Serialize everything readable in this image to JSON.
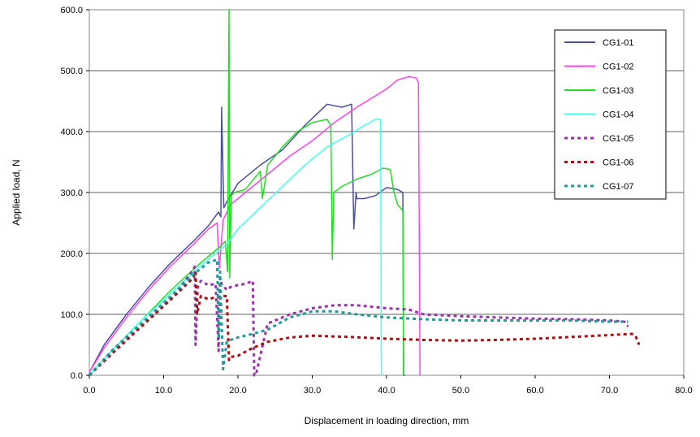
{
  "chart_data": {
    "type": "line",
    "xlabel": "Displacement in loading direction, mm",
    "ylabel": "Applied load, N",
    "xlim": [
      0,
      80
    ],
    "ylim": [
      0,
      600
    ],
    "x_ticks": [
      "0.0",
      "10.0",
      "20.0",
      "30.0",
      "40.0",
      "50.0",
      "60.0",
      "70.0",
      "80.0"
    ],
    "y_ticks": [
      "0.0",
      "100.0",
      "200.0",
      "300.0",
      "400.0",
      "500.0",
      "600.0"
    ],
    "grid": "horizontal",
    "legend_position": "top-right",
    "series": [
      {
        "name": "CG1-01",
        "color": "#4a4f9e",
        "style": "solid",
        "x": [
          0,
          2,
          5,
          8,
          11,
          14,
          16,
          17.4,
          17.7,
          17.8,
          18.1,
          18.5,
          20,
          23,
          26,
          29,
          32,
          34,
          35.3,
          35.6,
          35.9,
          36,
          37,
          38.5,
          40,
          41.5,
          42.2,
          42.3,
          42.5
        ],
        "y": [
          5,
          50,
          100,
          145,
          185,
          220,
          245,
          268,
          260,
          440,
          275,
          285,
          315,
          345,
          370,
          410,
          445,
          440,
          445,
          240,
          300,
          290,
          290,
          295,
          308,
          305,
          300,
          0,
          0
        ]
      },
      {
        "name": "CG1-02",
        "color": "#ff44ee",
        "style": "solid",
        "x": [
          0,
          2,
          5,
          8,
          11,
          14,
          16,
          17.2,
          17.5,
          18,
          19,
          21,
          24,
          27,
          30,
          33,
          36,
          38,
          40,
          41.5,
          43,
          44,
          44.3,
          44.5,
          44.6
        ],
        "y": [
          5,
          45,
          95,
          140,
          180,
          215,
          240,
          250,
          175,
          255,
          280,
          300,
          330,
          360,
          385,
          415,
          440,
          455,
          470,
          485,
          490,
          488,
          480,
          0,
          0
        ]
      },
      {
        "name": "CG1-03",
        "color": "#22dd22",
        "style": "solid",
        "x": [
          0,
          3,
          7,
          11,
          15,
          17.5,
          18.3,
          18.6,
          18.8,
          18.9,
          19.1,
          19.5,
          21,
          23,
          23.3,
          24,
          26,
          28,
          30,
          32,
          32.5,
          32.7,
          32.9,
          34,
          36,
          38,
          39.5,
          40.5,
          41,
          41.5,
          42.2,
          42.3
        ],
        "y": [
          0,
          40,
          90,
          140,
          185,
          210,
          220,
          170,
          600,
          160,
          295,
          300,
          305,
          335,
          290,
          345,
          375,
          400,
          415,
          420,
          410,
          190,
          300,
          310,
          322,
          330,
          340,
          338,
          300,
          280,
          270,
          0
        ]
      },
      {
        "name": "CG1-04",
        "color": "#44ffee",
        "style": "solid",
        "x": [
          0,
          3,
          7,
          11,
          15,
          17.5,
          18.5,
          20,
          23,
          26,
          29,
          32,
          35,
          37,
          38.5,
          39.2,
          39.3,
          39.4
        ],
        "y": [
          0,
          40,
          90,
          135,
          180,
          205,
          215,
          240,
          275,
          310,
          345,
          375,
          395,
          410,
          420,
          420,
          0,
          0
        ]
      },
      {
        "name": "CG1-05",
        "color": "#9933aa",
        "style": "dashed",
        "x": [
          0,
          3,
          7,
          11,
          13.5,
          14.2,
          14.3,
          14.6,
          15,
          16,
          17,
          17.4,
          17.6,
          17.8,
          18.5,
          19,
          20,
          21,
          22,
          22.2,
          22.4,
          24,
          27,
          30,
          33,
          36,
          40,
          43,
          45,
          50,
          55,
          60,
          65,
          70,
          72,
          72.5
        ],
        "y": [
          0,
          35,
          80,
          125,
          165,
          178,
          50,
          145,
          155,
          148,
          150,
          40,
          160,
          150,
          140,
          145,
          148,
          150,
          155,
          0,
          0,
          85,
          100,
          110,
          115,
          115,
          110,
          108,
          100,
          97,
          95,
          93,
          92,
          90,
          88,
          80
        ]
      },
      {
        "name": "CG1-06",
        "color": "#aa1111",
        "style": "dashed",
        "x": [
          0,
          3,
          7,
          11,
          14,
          14.3,
          14.5,
          15,
          16,
          17,
          18,
          18.5,
          18.8,
          19,
          20,
          22,
          24,
          27,
          30,
          35,
          40,
          45,
          50,
          55,
          60,
          65,
          70,
          73,
          73.5,
          74
        ],
        "y": [
          0,
          35,
          80,
          125,
          160,
          170,
          100,
          130,
          125,
          128,
          130,
          130,
          25,
          30,
          32,
          45,
          55,
          62,
          65,
          63,
          60,
          58,
          57,
          58,
          60,
          63,
          66,
          68,
          65,
          50
        ]
      },
      {
        "name": "CG1-07",
        "color": "#229999",
        "style": "dashed",
        "x": [
          0,
          3,
          7,
          11,
          14,
          16,
          17.2,
          17.4,
          17.6,
          18,
          18.5,
          19,
          20,
          22,
          24,
          27,
          30,
          33,
          36,
          40,
          45,
          50,
          55,
          60,
          65,
          70,
          72.5
        ],
        "y": [
          0,
          40,
          85,
          130,
          165,
          185,
          190,
          60,
          170,
          10,
          55,
          58,
          62,
          68,
          75,
          95,
          105,
          105,
          100,
          95,
          92,
          90,
          90,
          90,
          90,
          88,
          88
        ]
      }
    ]
  }
}
